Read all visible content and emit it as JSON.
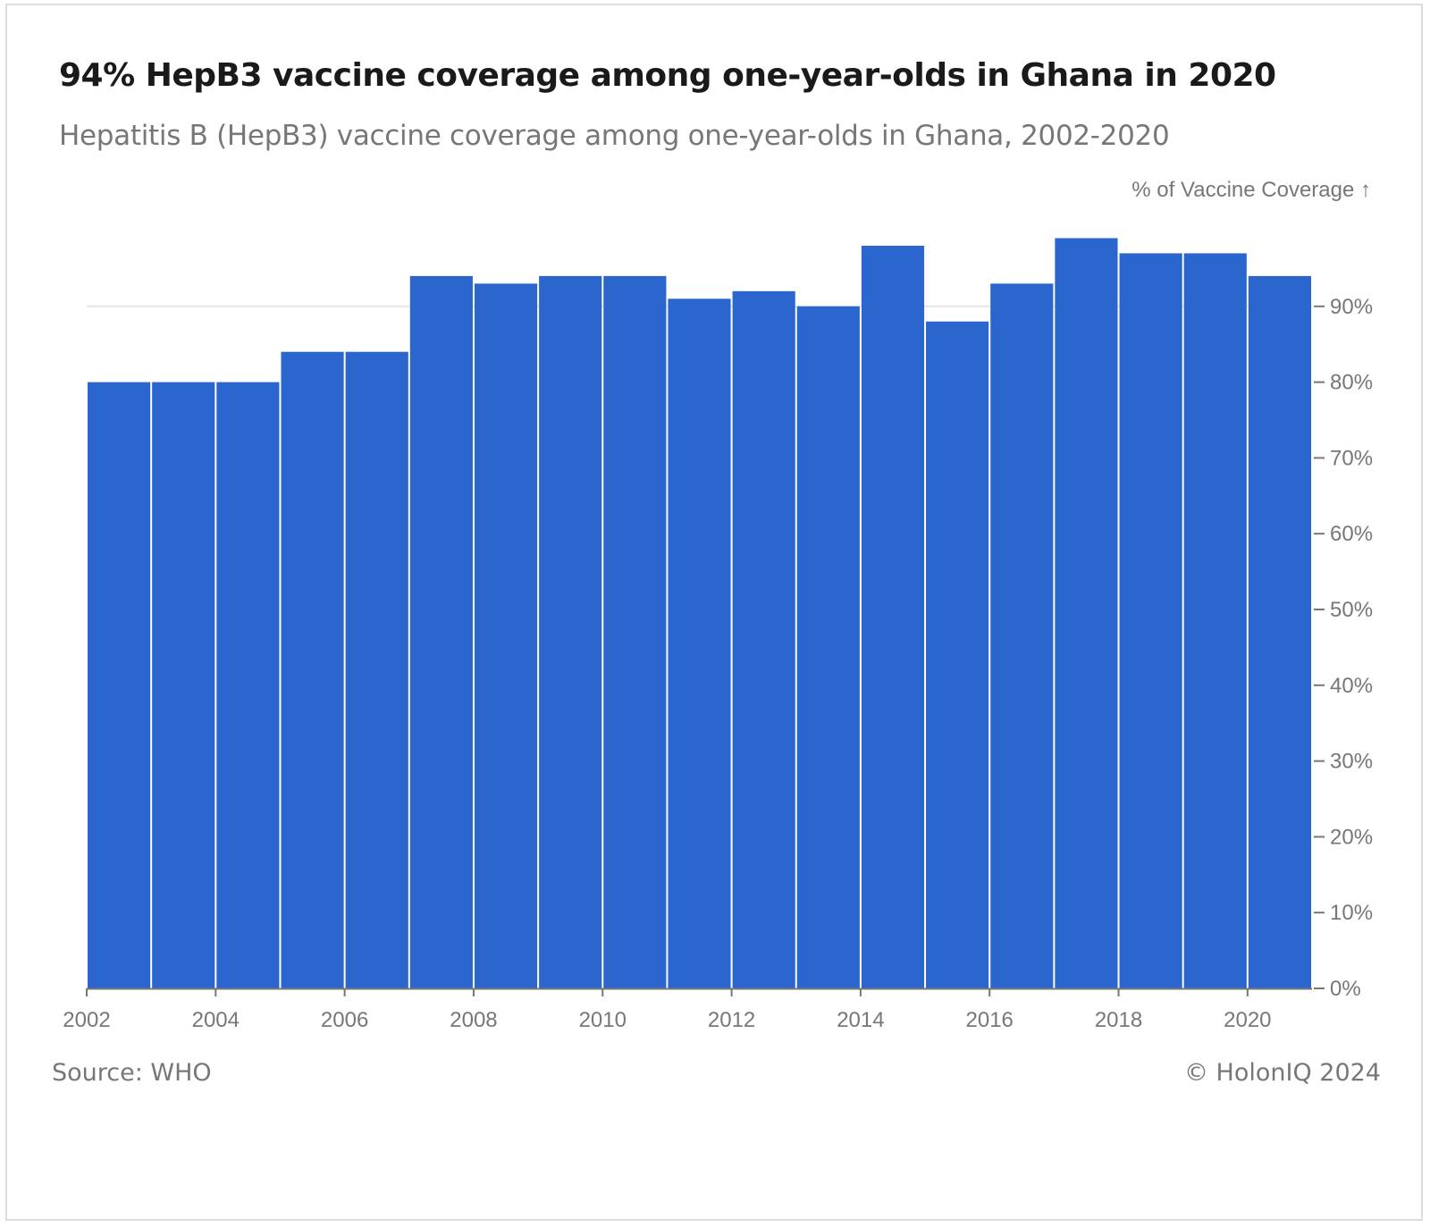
{
  "header": {
    "title": "94% HepB3 vaccine coverage among one-year-olds in Ghana in 2020",
    "subtitle": "Hepatitis B (HepB3) vaccine coverage among one-year-olds in Ghana, 2002-2020"
  },
  "footer": {
    "source": "Source: WHO",
    "copyright": "© HolonIQ 2024"
  },
  "colors": {
    "bar": "#2a66ce",
    "axis": "#777777",
    "grid": "#e6e6e6",
    "text_muted": "#777777"
  },
  "chart_data": {
    "type": "bar",
    "title": "94% HepB3 vaccine coverage among one-year-olds in Ghana in 2020",
    "subtitle": "Hepatitis B (HepB3) vaccine coverage among one-year-olds in Ghana, 2002-2020",
    "ylabel": "% of Vaccine Coverage ↑",
    "xlabel": "",
    "categories": [
      "2002",
      "2003",
      "2004",
      "2005",
      "2006",
      "2007",
      "2008",
      "2009",
      "2010",
      "2011",
      "2012",
      "2013",
      "2014",
      "2015",
      "2016",
      "2017",
      "2018",
      "2019",
      "2020"
    ],
    "values": [
      80,
      80,
      80,
      84,
      84,
      94,
      93,
      94,
      94,
      91,
      92,
      90,
      98,
      88,
      93,
      99,
      97,
      97,
      94
    ],
    "ylim": [
      0,
      100
    ],
    "y_ticks": [
      0,
      10,
      20,
      30,
      40,
      50,
      60,
      70,
      80,
      90
    ],
    "y_tick_labels": [
      "0%",
      "10%",
      "20%",
      "30%",
      "40%",
      "50%",
      "60%",
      "70%",
      "80%",
      "90%"
    ],
    "x_ticks": [
      2002,
      2004,
      2006,
      2008,
      2010,
      2012,
      2014,
      2016,
      2018,
      2020
    ],
    "x_tick_labels": [
      "2002",
      "2004",
      "2006",
      "2008",
      "2010",
      "2012",
      "2014",
      "2016",
      "2018",
      "2020"
    ],
    "y_axis_position": "right",
    "grid": "y-partial",
    "legend": "none"
  }
}
